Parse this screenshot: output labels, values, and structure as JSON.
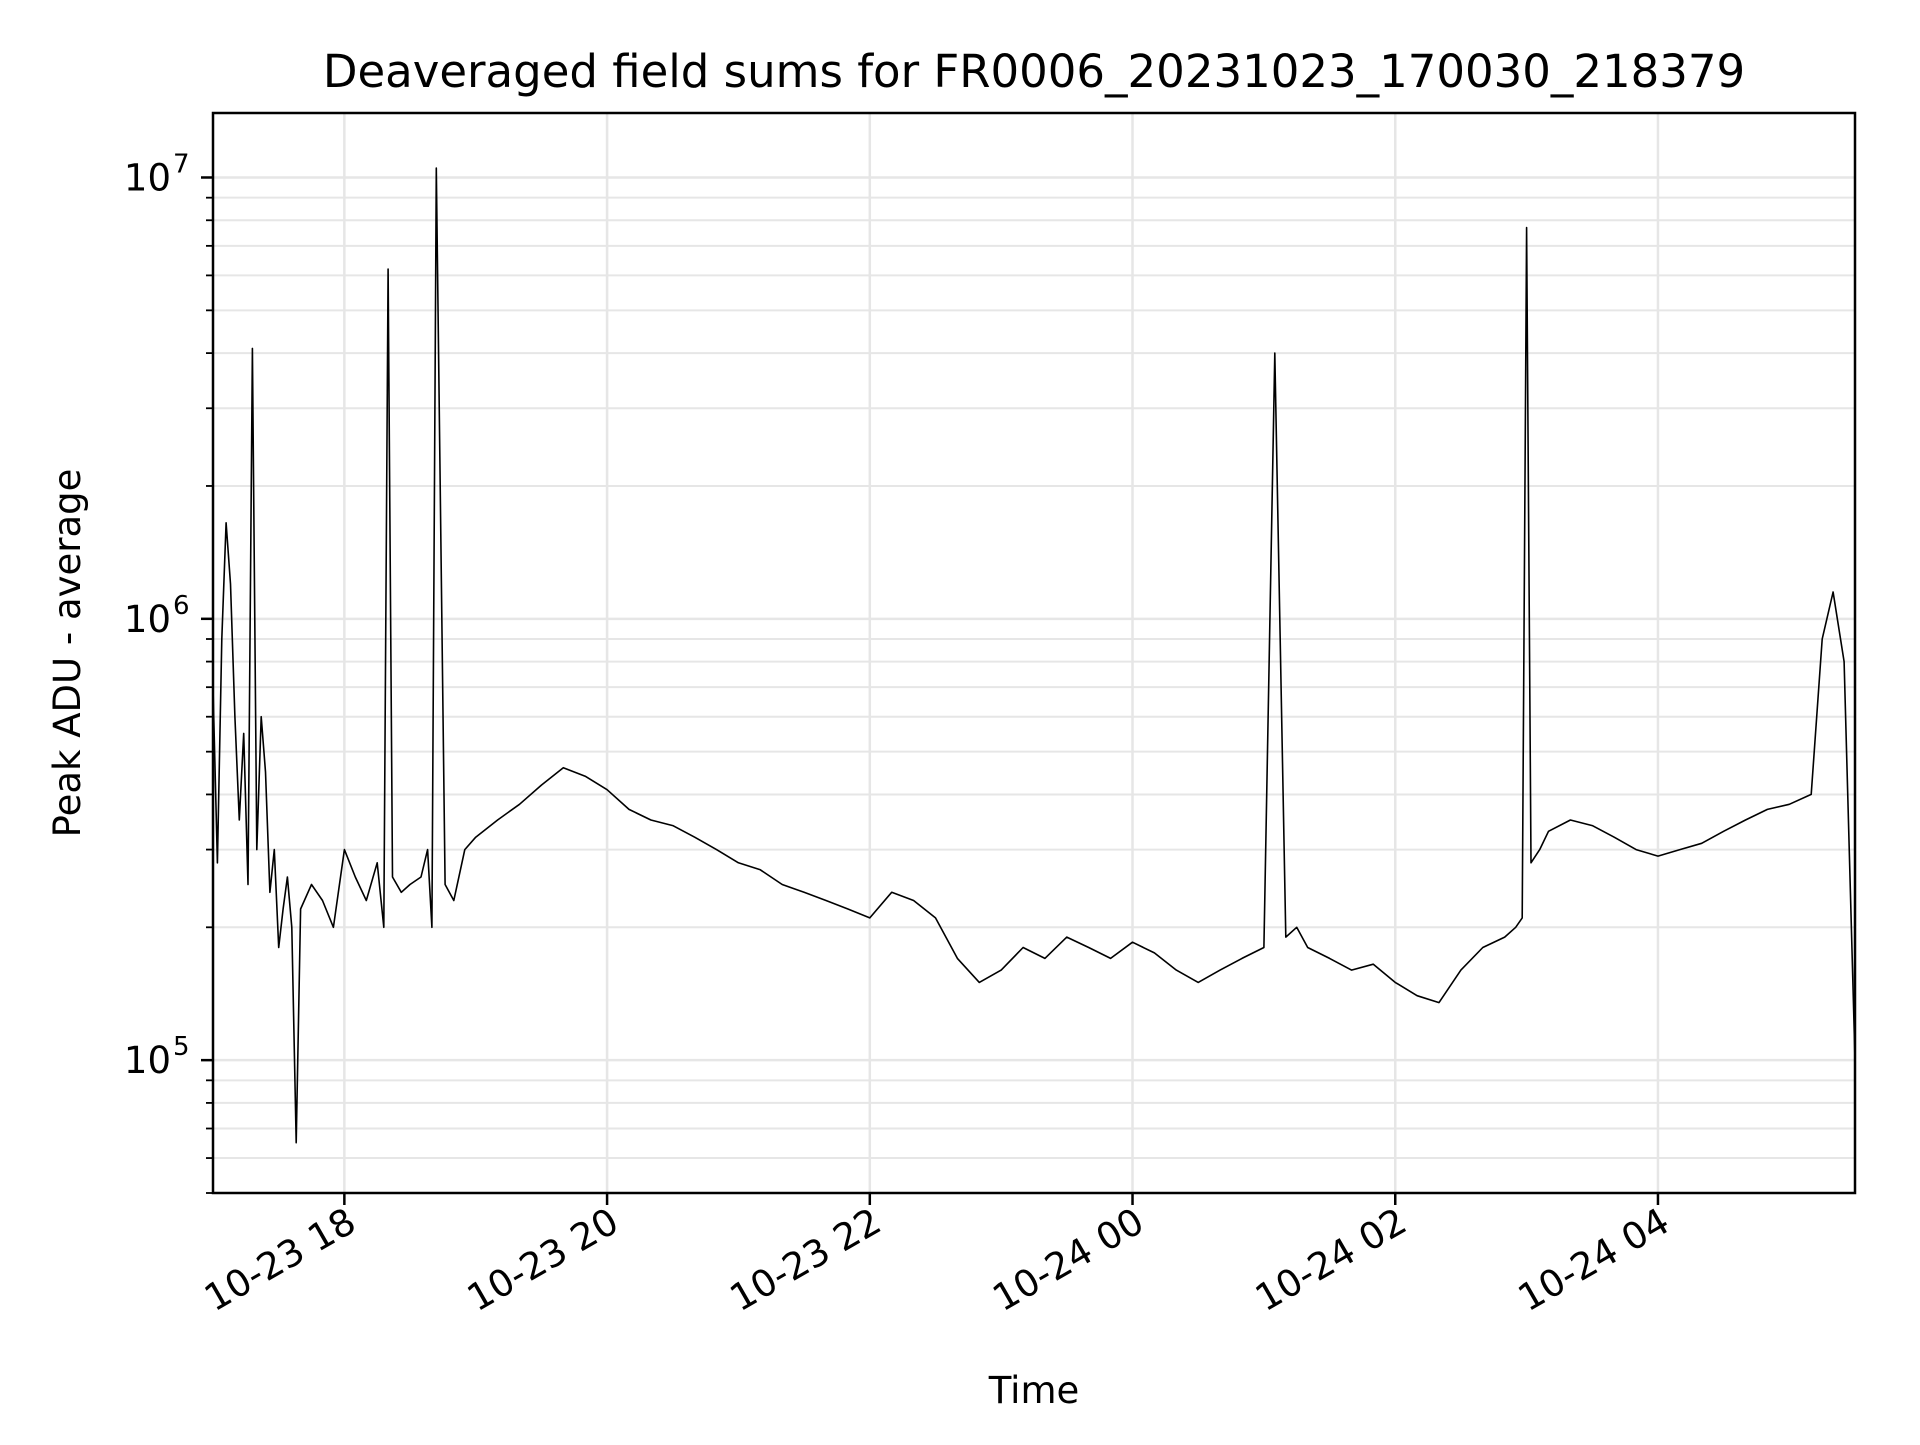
{
  "chart_data": {
    "type": "line",
    "title": "Deaveraged field sums for FR0006_20231023_170030_218379",
    "xlabel": "Time",
    "ylabel": "Peak ADU - average",
    "yscale": "log",
    "ylim": [
      50000,
      14000000
    ],
    "xlim": [
      "2023-10-23 17:00",
      "2023-10-24 05:30"
    ],
    "grid": true,
    "line_color": "#000000",
    "grid_color": "#e6e6e6",
    "x_ticks": [
      {
        "value": "2023-10-23 18:00",
        "label": "10-23 18"
      },
      {
        "value": "2023-10-23 20:00",
        "label": "10-23 20"
      },
      {
        "value": "2023-10-23 22:00",
        "label": "10-23 22"
      },
      {
        "value": "2023-10-24 00:00",
        "label": "10-24 00"
      },
      {
        "value": "2023-10-24 02:00",
        "label": "10-24 02"
      },
      {
        "value": "2023-10-24 04:00",
        "label": "10-24 04"
      }
    ],
    "y_ticks": [
      {
        "value": 100000,
        "base": "10",
        "exp": "5"
      },
      {
        "value": 1000000,
        "base": "10",
        "exp": "6"
      },
      {
        "value": 10000000,
        "base": "10",
        "exp": "7"
      }
    ],
    "series": [
      {
        "x": [
          "2023-10-23 17:00",
          "2023-10-23 17:02",
          "2023-10-23 17:04",
          "2023-10-23 17:06",
          "2023-10-23 17:08",
          "2023-10-23 17:10",
          "2023-10-23 17:12",
          "2023-10-23 17:14",
          "2023-10-23 17:16",
          "2023-10-23 17:18",
          "2023-10-23 17:20",
          "2023-10-23 17:22",
          "2023-10-23 17:24",
          "2023-10-23 17:26",
          "2023-10-23 17:28",
          "2023-10-23 17:30",
          "2023-10-23 17:32",
          "2023-10-23 17:34",
          "2023-10-23 17:36",
          "2023-10-23 17:38",
          "2023-10-23 17:40",
          "2023-10-23 17:45",
          "2023-10-23 17:50",
          "2023-10-23 17:55",
          "2023-10-23 18:00",
          "2023-10-23 18:05",
          "2023-10-23 18:10",
          "2023-10-23 18:15",
          "2023-10-23 18:18",
          "2023-10-23 18:20",
          "2023-10-23 18:22",
          "2023-10-23 18:26",
          "2023-10-23 18:30",
          "2023-10-23 18:35",
          "2023-10-23 18:38",
          "2023-10-23 18:40",
          "2023-10-23 18:42",
          "2023-10-23 18:46",
          "2023-10-23 18:50",
          "2023-10-23 18:55",
          "2023-10-23 19:00",
          "2023-10-23 19:10",
          "2023-10-23 19:20",
          "2023-10-23 19:30",
          "2023-10-23 19:40",
          "2023-10-23 19:50",
          "2023-10-23 20:00",
          "2023-10-23 20:10",
          "2023-10-23 20:20",
          "2023-10-23 20:30",
          "2023-10-23 20:40",
          "2023-10-23 20:50",
          "2023-10-23 21:00",
          "2023-10-23 21:10",
          "2023-10-23 21:20",
          "2023-10-23 21:30",
          "2023-10-23 21:40",
          "2023-10-23 21:50",
          "2023-10-23 22:00",
          "2023-10-23 22:10",
          "2023-10-23 22:20",
          "2023-10-23 22:30",
          "2023-10-23 22:40",
          "2023-10-23 22:50",
          "2023-10-23 23:00",
          "2023-10-23 23:10",
          "2023-10-23 23:20",
          "2023-10-23 23:30",
          "2023-10-23 23:40",
          "2023-10-23 23:50",
          "2023-10-24 00:00",
          "2023-10-24 00:10",
          "2023-10-24 00:20",
          "2023-10-24 00:30",
          "2023-10-24 00:40",
          "2023-10-24 00:50",
          "2023-10-24 01:00",
          "2023-10-24 01:05",
          "2023-10-24 01:10",
          "2023-10-24 01:15",
          "2023-10-24 01:20",
          "2023-10-24 01:30",
          "2023-10-24 01:40",
          "2023-10-24 01:50",
          "2023-10-24 02:00",
          "2023-10-24 02:10",
          "2023-10-24 02:20",
          "2023-10-24 02:30",
          "2023-10-24 02:40",
          "2023-10-24 02:50",
          "2023-10-24 02:55",
          "2023-10-24 02:58",
          "2023-10-24 03:00",
          "2023-10-24 03:02",
          "2023-10-24 03:06",
          "2023-10-24 03:10",
          "2023-10-24 03:20",
          "2023-10-24 03:30",
          "2023-10-24 03:40",
          "2023-10-24 03:50",
          "2023-10-24 04:00",
          "2023-10-24 04:10",
          "2023-10-24 04:20",
          "2023-10-24 04:30",
          "2023-10-24 04:40",
          "2023-10-24 04:50",
          "2023-10-24 05:00",
          "2023-10-24 05:10",
          "2023-10-24 05:15",
          "2023-10-24 05:20",
          "2023-10-24 05:25",
          "2023-10-24 05:30"
        ],
        "y": [
          700000,
          280000,
          900000,
          1650000,
          1200000,
          600000,
          350000,
          550000,
          250000,
          4100000,
          300000,
          600000,
          450000,
          240000,
          300000,
          180000,
          220000,
          260000,
          200000,
          65000,
          220000,
          250000,
          230000,
          200000,
          300000,
          260000,
          230000,
          280000,
          200000,
          6200000,
          260000,
          240000,
          250000,
          260000,
          300000,
          200000,
          10500000,
          250000,
          230000,
          300000,
          320000,
          350000,
          380000,
          420000,
          460000,
          440000,
          410000,
          370000,
          350000,
          340000,
          320000,
          300000,
          280000,
          270000,
          250000,
          240000,
          230000,
          220000,
          210000,
          240000,
          230000,
          210000,
          170000,
          150000,
          160000,
          180000,
          170000,
          190000,
          180000,
          170000,
          185000,
          175000,
          160000,
          150000,
          160000,
          170000,
          180000,
          4000000,
          190000,
          200000,
          180000,
          170000,
          160000,
          165000,
          150000,
          140000,
          135000,
          160000,
          180000,
          190000,
          200000,
          210000,
          7700000,
          280000,
          300000,
          330000,
          350000,
          340000,
          320000,
          300000,
          290000,
          300000,
          310000,
          330000,
          350000,
          370000,
          380000,
          400000,
          900000,
          1150000,
          800000,
          100000
        ]
      }
    ]
  }
}
